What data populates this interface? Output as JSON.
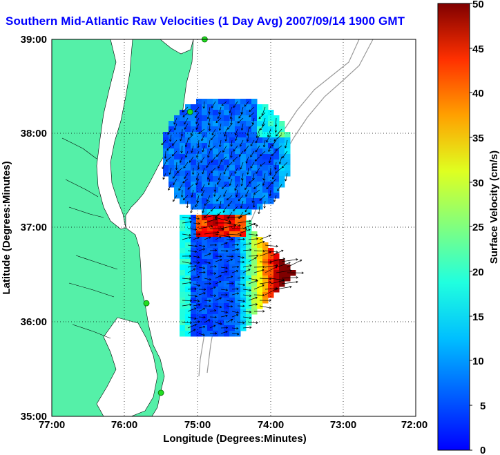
{
  "title": "Southern Mid-Atlantic Raw Velocities (1 Day Avg) 2007/09/14 1900 GMT",
  "x_axis": {
    "label": "Longitude (Degrees:Minutes)",
    "ticks": [
      "77:00",
      "76:00",
      "75:00",
      "74:00",
      "73:00",
      "72:00"
    ]
  },
  "y_axis": {
    "label": "Latitude (Degrees:Minutes)",
    "ticks": [
      "39:00",
      "38:00",
      "37:00",
      "36:00",
      "35:00"
    ]
  },
  "colorbar": {
    "label": "Surface Velocity (cm/s)",
    "ticks": [
      "50",
      "45",
      "40",
      "35",
      "30",
      "25",
      "20",
      "15",
      "10",
      "5",
      "0"
    ],
    "min": 0,
    "max": 50
  },
  "colors": {
    "land": "#55f0a8",
    "title": "#0000ff",
    "station": "#22dd22"
  },
  "map": {
    "lon_range": [
      -77,
      -72
    ],
    "lat_range": [
      35,
      39
    ],
    "gridlines": true,
    "stations": [
      {
        "lon": -74.9,
        "lat": 39.0
      },
      {
        "lon": -75.1,
        "lat": 38.23
      },
      {
        "lon": -75.7,
        "lat": 36.2
      },
      {
        "lon": -75.5,
        "lat": 35.25
      }
    ]
  }
}
